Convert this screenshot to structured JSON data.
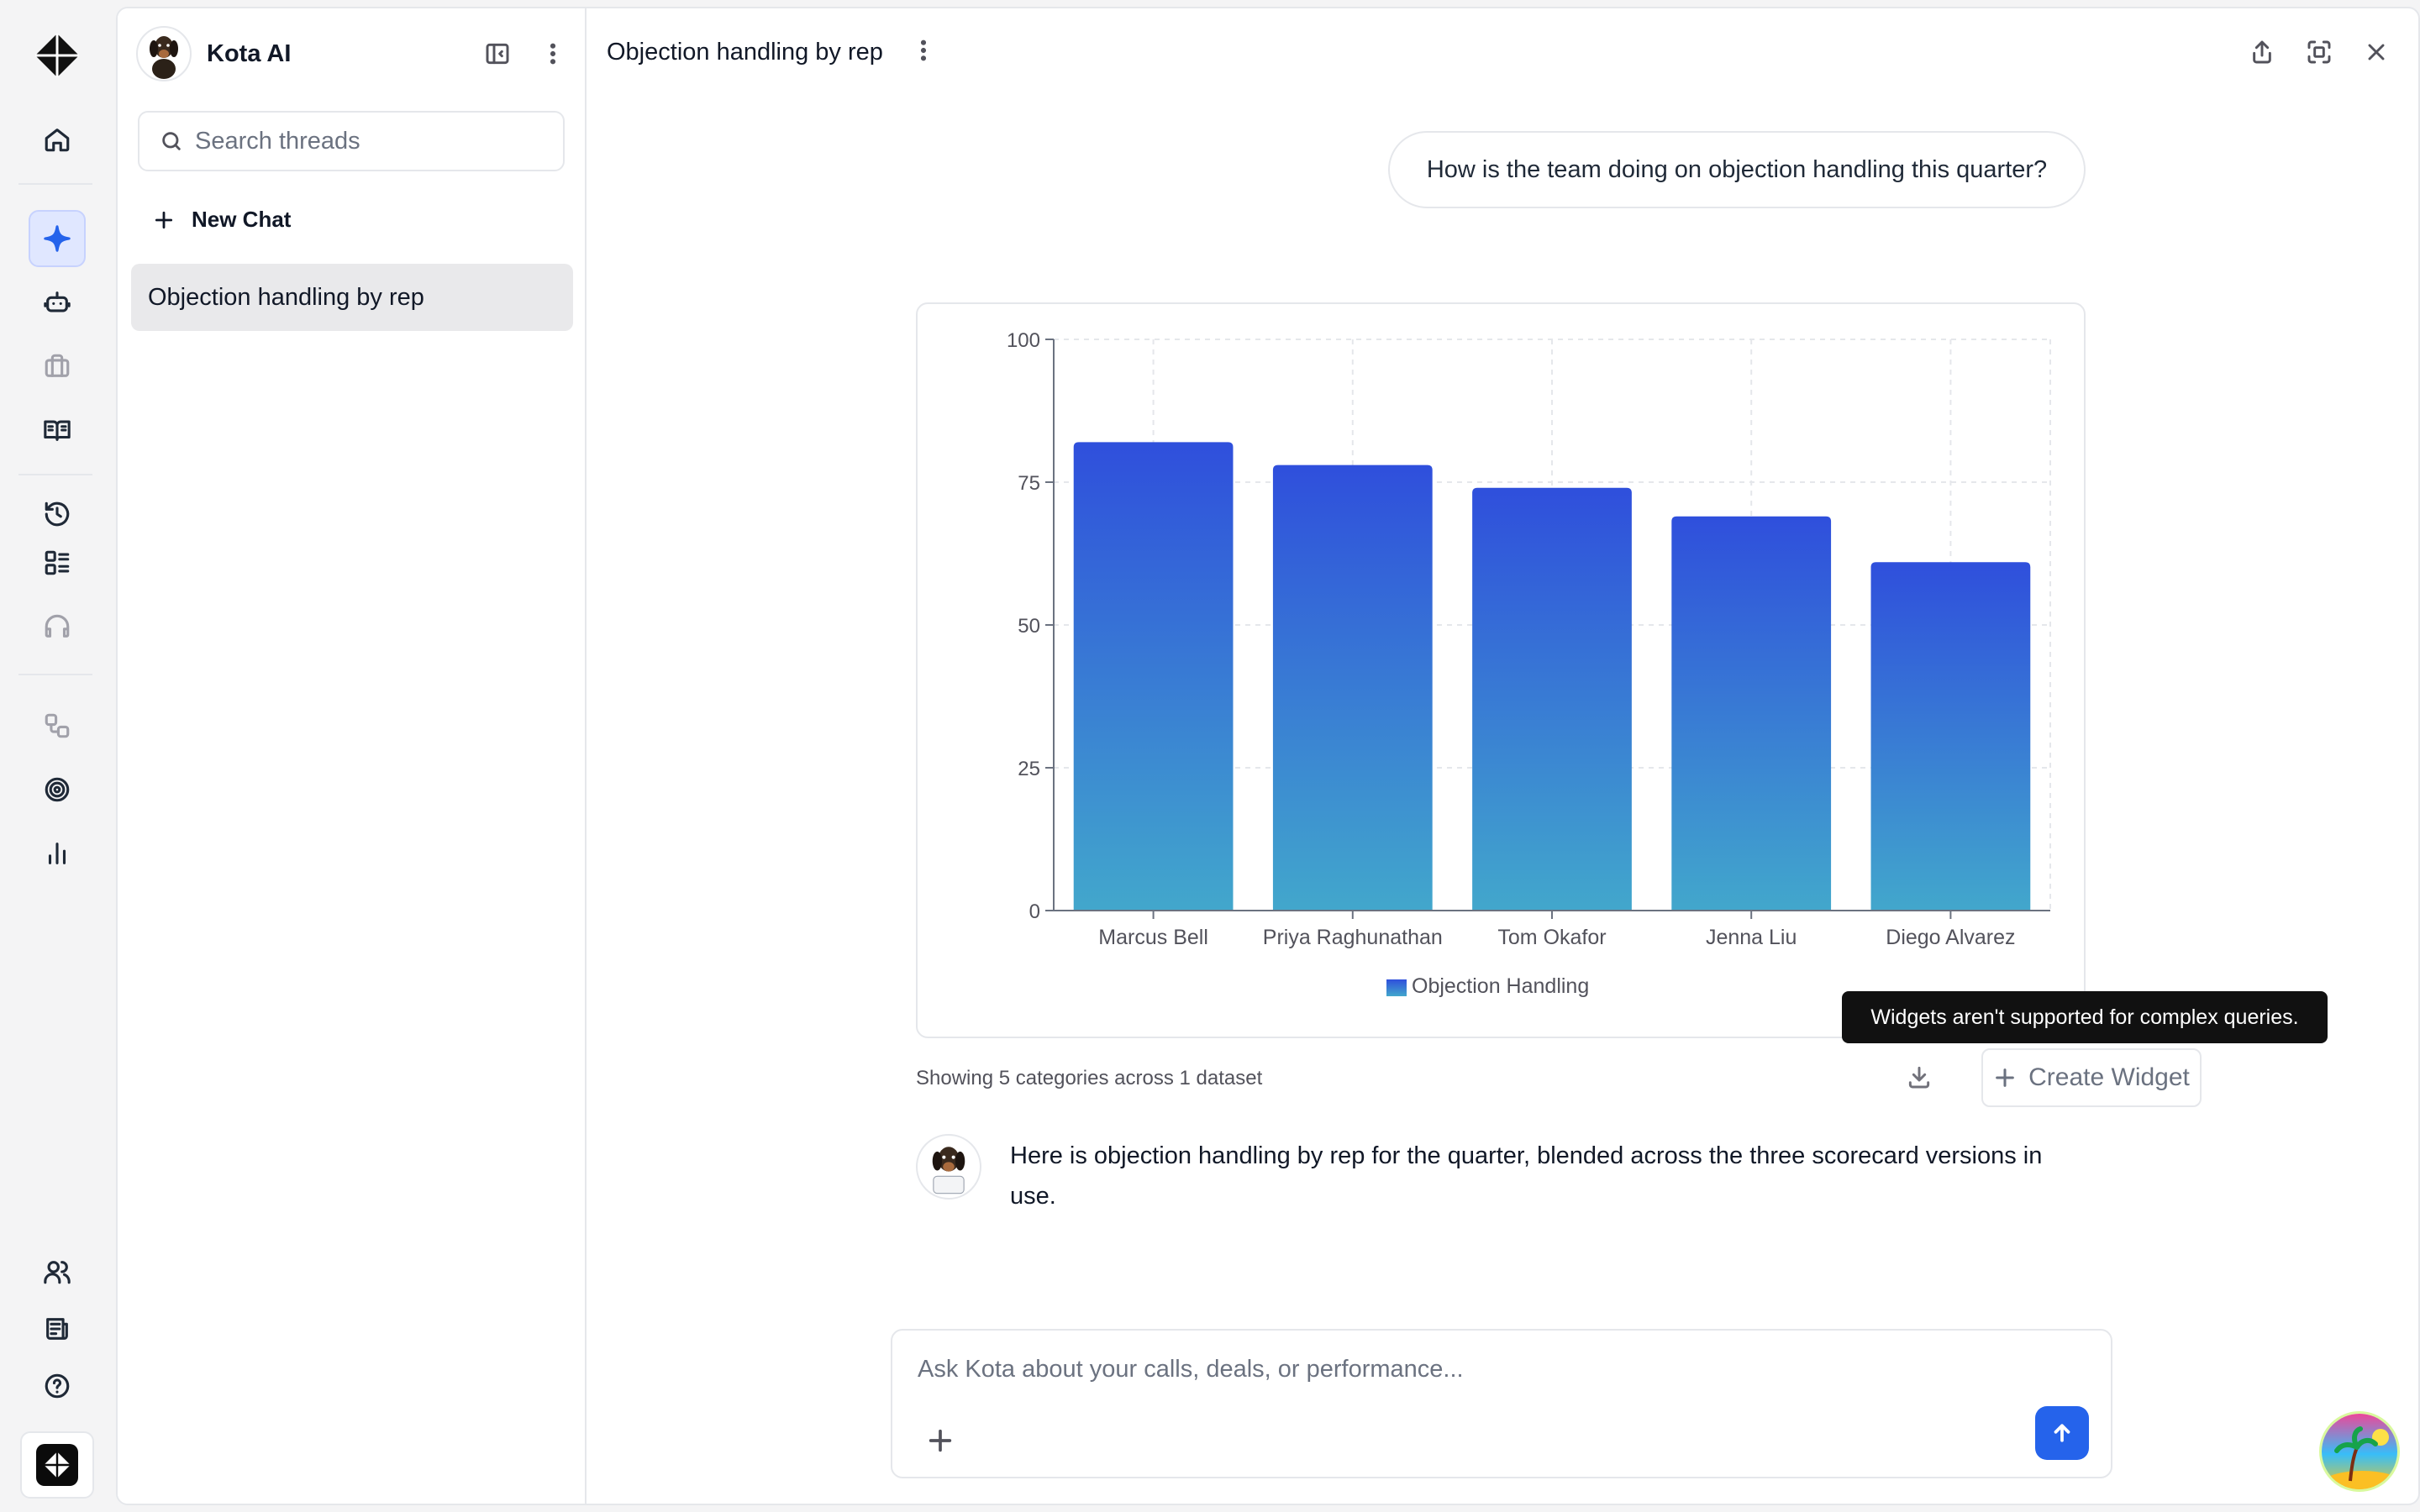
{
  "app": {
    "name": "Kota AI"
  },
  "sidebar_threads": {
    "search_placeholder": "Search threads",
    "new_chat_label": "New Chat",
    "items": [
      {
        "label": "Objection handling by rep",
        "active": true
      }
    ]
  },
  "rail": {
    "icons": [
      "kota-logo-icon",
      "home-icon",
      "sparkle-icon",
      "bot-icon",
      "briefcase-icon",
      "book-open-icon",
      "history-icon",
      "list-grid-icon",
      "headset-icon",
      "workflow-icon",
      "target-icon",
      "bar-chart-icon",
      "users-icon",
      "newspaper-icon",
      "help-icon"
    ],
    "active": "sparkle-icon"
  },
  "header": {
    "title": "Objection handling by rep"
  },
  "conversation": {
    "user_message": "How is the team doing on objection handling this quarter?",
    "assistant_message": "Here is objection handling by rep for the quarter, blended across the three scorecard versions in use."
  },
  "chart_caption": "Showing 5 categories across 1 dataset",
  "create_widget_label": "Create Widget",
  "tooltip_text": "Widgets aren't supported for complex queries.",
  "composer": {
    "placeholder": "Ask Kota about your calls, deals, or performance..."
  },
  "colors": {
    "accent": "#2563eb",
    "bar_top": "#2f4fdc",
    "bar_bottom": "#42a7cc"
  },
  "chart_data": {
    "type": "bar",
    "categories": [
      "Marcus Bell",
      "Priya Raghunathan",
      "Tom Okafor",
      "Jenna Liu",
      "Diego Alvarez"
    ],
    "series": [
      {
        "name": "Objection Handling",
        "values": [
          82,
          78,
          74,
          69,
          61
        ]
      }
    ],
    "yticks": [
      "0",
      "25",
      "50",
      "75",
      "100"
    ],
    "ylim": [
      0,
      100
    ],
    "grid": true,
    "legend": "bottom-center"
  }
}
